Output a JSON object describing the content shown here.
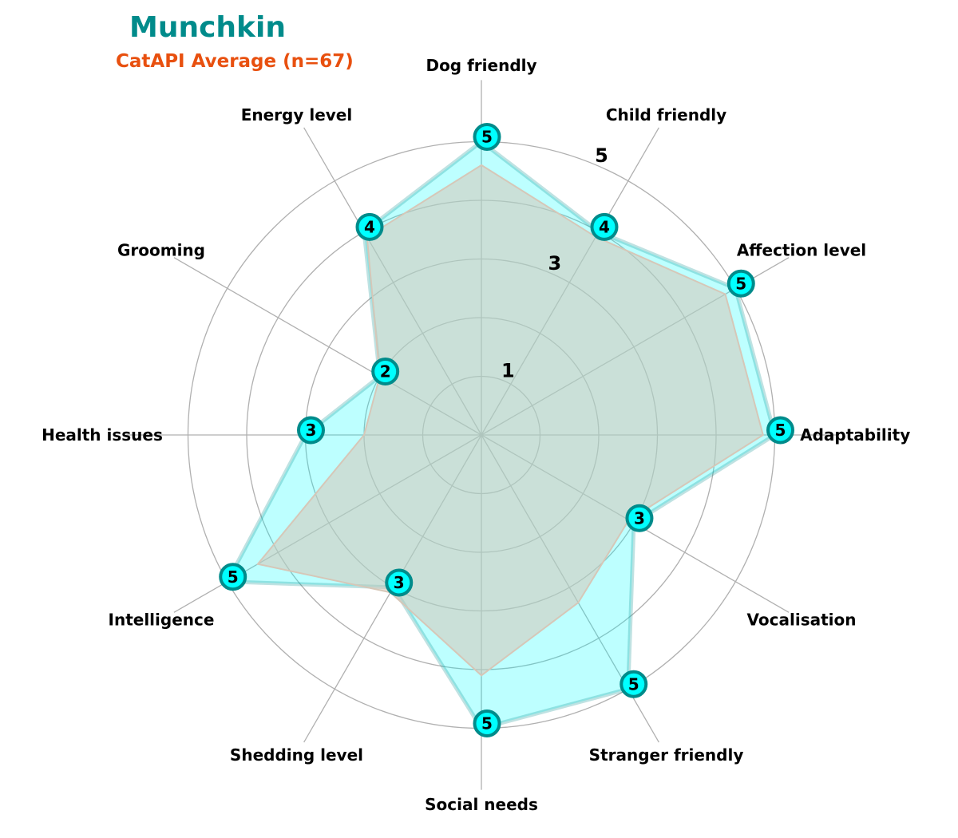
{
  "header": {
    "title": "Munchkin",
    "subtitle": "CatAPI Average (n=67)"
  },
  "colors": {
    "title": "#008b8b",
    "subtitle": "#e8500f",
    "breed_fill": "#00ffff",
    "breed_edge": "#008b8b",
    "average_fill": "#d6c7b8",
    "grid": "#b0b0b0",
    "text": "#000000"
  },
  "chart_data": {
    "type": "radar",
    "axes": [
      "Dog friendly",
      "Child friendly",
      "Affection level",
      "Adaptability",
      "Vocalisation",
      "Stranger friendly",
      "Social needs",
      "Shedding level",
      "Intelligence",
      "Health issues",
      "Grooming",
      "Energy level"
    ],
    "series": [
      {
        "name": "Munchkin",
        "values": [
          5,
          4,
          5,
          5,
          3,
          5,
          5,
          3,
          5,
          3,
          2,
          4
        ]
      },
      {
        "name": "CatAPI Average (n=67)",
        "values": [
          4.6,
          3.9,
          4.8,
          4.8,
          2.9,
          3.3,
          4.1,
          3.1,
          4.4,
          2.0,
          2.0,
          3.9
        ]
      }
    ],
    "radial_ticks": [
      "1",
      "3",
      "5"
    ],
    "rlim": [
      0,
      5
    ],
    "grid": true
  }
}
